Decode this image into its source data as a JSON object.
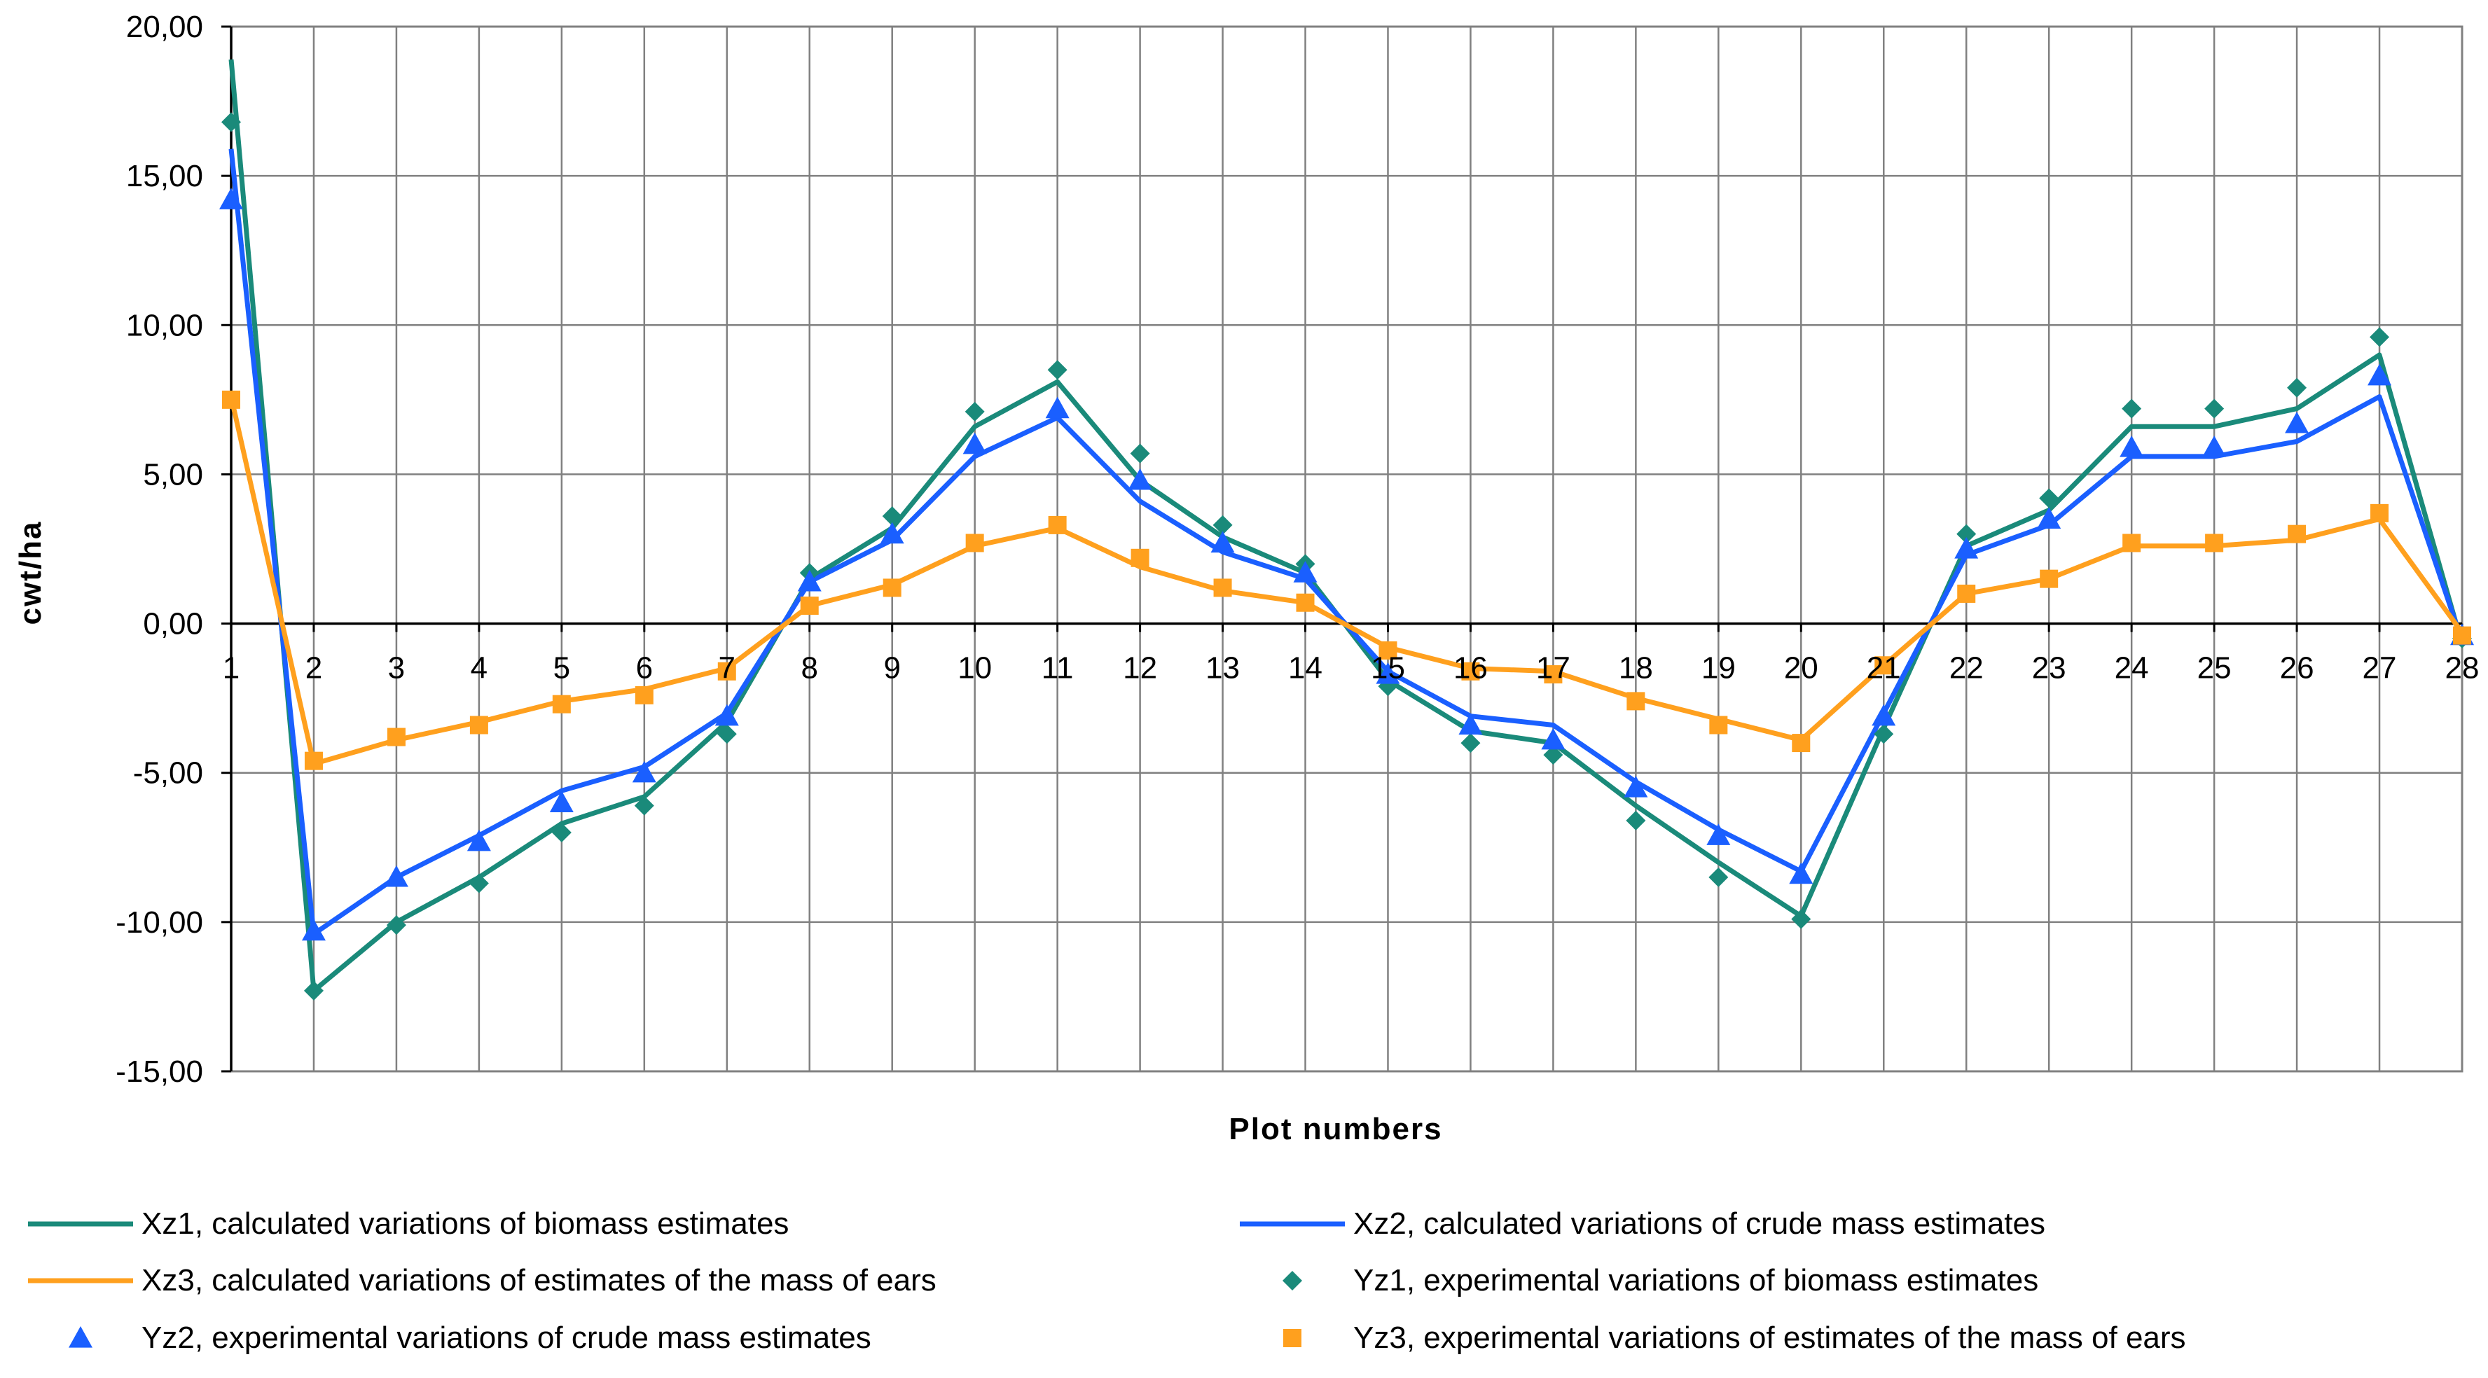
{
  "chart_data": {
    "type": "line",
    "title": "",
    "xlabel": "Plot numbers",
    "ylabel": "cwt/ha",
    "ylim": [
      -15,
      20
    ],
    "yticks": [
      20,
      15,
      10,
      5,
      0,
      -5,
      -10,
      -15
    ],
    "ytick_labels": [
      "20,00",
      "15,00",
      "10,00",
      "5,00",
      "0,00",
      "-5,00",
      "-10,00",
      "-15,00"
    ],
    "x": [
      1,
      2,
      3,
      4,
      5,
      6,
      7,
      8,
      9,
      10,
      11,
      12,
      13,
      14,
      15,
      16,
      17,
      18,
      19,
      20,
      21,
      22,
      23,
      24,
      25,
      26,
      27,
      28
    ],
    "x_labels": [
      "1",
      "2",
      "3",
      "4",
      "5",
      "6",
      "7",
      "8",
      "9",
      "10",
      "11",
      "12",
      "13",
      "14",
      "15",
      "16",
      "17",
      "18",
      "19",
      "20",
      "21",
      "22",
      "23",
      "24",
      "25",
      "26",
      "27",
      "28"
    ],
    "grid": true,
    "legend_position": "bottom",
    "series": [
      {
        "name": "Xz1, calculated variations of biomass estimates",
        "kind": "line",
        "color": "#1a8a7a",
        "values": [
          18.9,
          -12.3,
          -10.0,
          -8.5,
          -6.7,
          -5.8,
          -3.3,
          1.5,
          3.2,
          6.6,
          8.1,
          4.8,
          2.9,
          1.7,
          -1.9,
          -3.6,
          -4.0,
          -6.1,
          -8.0,
          -9.8,
          -3.5,
          2.6,
          3.8,
          6.6,
          6.6,
          7.2,
          9.0,
          -0.7
        ]
      },
      {
        "name": "Xz2, calculated variations of crude mass estimates",
        "kind": "line",
        "color": "#1a5fff",
        "values": [
          15.9,
          -10.4,
          -8.5,
          -7.1,
          -5.6,
          -4.8,
          -3.0,
          1.4,
          2.8,
          5.6,
          6.9,
          4.1,
          2.4,
          1.5,
          -1.6,
          -3.1,
          -3.4,
          -5.3,
          -6.9,
          -8.3,
          -3.0,
          2.3,
          3.3,
          5.6,
          5.6,
          6.1,
          7.6,
          -0.6
        ]
      },
      {
        "name": "Xz3, calculated variations of estimates of the mass of ears",
        "kind": "line",
        "color": "#ffa01e",
        "values": [
          7.6,
          -4.7,
          -3.9,
          -3.3,
          -2.6,
          -2.2,
          -1.5,
          0.6,
          1.3,
          2.6,
          3.2,
          1.9,
          1.1,
          0.7,
          -0.8,
          -1.5,
          -1.6,
          -2.5,
          -3.2,
          -3.9,
          -1.4,
          1.0,
          1.5,
          2.6,
          2.6,
          2.8,
          3.5,
          -0.3
        ]
      },
      {
        "name": "Yz1, experimental variations of biomass estimates",
        "kind": "marker",
        "marker": "diamond",
        "color": "#1a8a7a",
        "values": [
          16.8,
          -12.3,
          -10.1,
          -8.7,
          -7.0,
          -6.1,
          -3.7,
          1.7,
          3.6,
          7.1,
          8.5,
          5.7,
          3.3,
          2.0,
          -2.1,
          -4.0,
          -4.4,
          -6.6,
          -8.5,
          -9.9,
          -3.7,
          3.0,
          4.2,
          7.2,
          7.2,
          7.9,
          9.6,
          -0.5
        ]
      },
      {
        "name": "Yz2, experimental variations of crude mass estimates",
        "kind": "marker",
        "marker": "triangle",
        "color": "#1a5fff",
        "values": [
          14.2,
          -10.3,
          -8.5,
          -7.3,
          -6.0,
          -5.0,
          -3.1,
          1.4,
          3.0,
          6.0,
          7.2,
          4.8,
          2.7,
          1.7,
          -1.7,
          -3.4,
          -3.9,
          -5.5,
          -7.1,
          -8.4,
          -3.1,
          2.5,
          3.5,
          5.9,
          5.9,
          6.7,
          8.3,
          -0.4
        ]
      },
      {
        "name": "Yz3, experimental variations of estimates of the mass of ears",
        "kind": "marker",
        "marker": "square",
        "color": "#ffa01e",
        "values": [
          7.5,
          -4.6,
          -3.8,
          -3.4,
          -2.7,
          -2.4,
          -1.6,
          0.6,
          1.2,
          2.7,
          3.3,
          2.2,
          1.2,
          0.7,
          -0.9,
          -1.6,
          -1.7,
          -2.6,
          -3.4,
          -4.0,
          -1.4,
          1.0,
          1.5,
          2.7,
          2.7,
          3.0,
          3.7,
          -0.4
        ]
      }
    ]
  }
}
